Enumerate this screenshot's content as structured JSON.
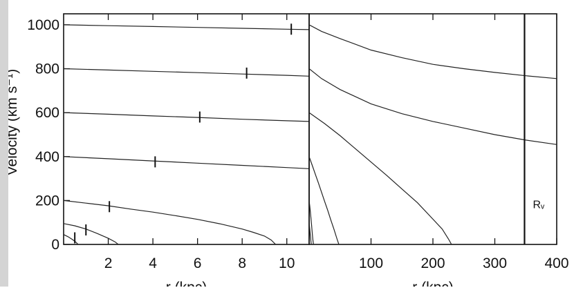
{
  "chart_data": [
    {
      "type": "line",
      "ylabel": "Velocity (km s⁻¹)",
      "xlabel": "r (kpc)",
      "xlim": [
        0,
        11
      ],
      "ylim": [
        0,
        1050
      ],
      "xticks": [
        2,
        4,
        6,
        8,
        10
      ],
      "yticks": [
        0,
        200,
        400,
        600,
        800,
        1000
      ],
      "series": [
        {
          "x": [
            0,
            2,
            4,
            6,
            8,
            10,
            11
          ],
          "y": [
            1000,
            996,
            992,
            988,
            984,
            980,
            978
          ]
        },
        {
          "x": [
            0,
            2,
            4,
            6,
            8,
            10,
            11
          ],
          "y": [
            800,
            794,
            788,
            782,
            776,
            770,
            766
          ]
        },
        {
          "x": [
            0,
            2,
            4,
            6,
            8,
            10,
            11
          ],
          "y": [
            600,
            593,
            585,
            578,
            570,
            563,
            560
          ]
        },
        {
          "x": [
            0,
            2,
            4,
            6,
            8,
            10,
            11
          ],
          "y": [
            400,
            390,
            380,
            370,
            360,
            350,
            345
          ]
        },
        {
          "x": [
            0,
            1,
            2,
            3,
            4,
            5,
            6,
            7,
            8,
            8.5,
            9,
            9.3,
            9.5
          ],
          "y": [
            200,
            188,
            176,
            161,
            147,
            131,
            114,
            94,
            70,
            55,
            38,
            20,
            0
          ]
        },
        {
          "x": [
            0,
            0.5,
            1,
            1.5,
            2,
            2.3,
            2.45
          ],
          "y": [
            95,
            85,
            70,
            50,
            28,
            12,
            0
          ]
        },
        {
          "x": [
            0,
            0.2,
            0.4,
            0.55,
            0.65
          ],
          "y": [
            45,
            35,
            22,
            10,
            0
          ]
        }
      ],
      "markers": [
        {
          "x": 10.2,
          "y": 980
        },
        {
          "x": 8.2,
          "y": 780
        },
        {
          "x": 6.1,
          "y": 580
        },
        {
          "x": 4.1,
          "y": 376
        },
        {
          "x": 2.05,
          "y": 172
        },
        {
          "x": 1.0,
          "y": 66
        },
        {
          "x": 0.5,
          "y": 30
        }
      ]
    },
    {
      "type": "line",
      "xlabel": "r (kpc)",
      "xlim": [
        0,
        400
      ],
      "ylim": [
        0,
        1050
      ],
      "xticks": [
        100,
        200,
        300,
        400
      ],
      "series": [
        {
          "x": [
            0,
            20,
            50,
            100,
            150,
            200,
            250,
            300,
            350,
            400
          ],
          "y": [
            1000,
            970,
            937,
            885,
            850,
            820,
            800,
            783,
            768,
            755
          ]
        },
        {
          "x": [
            0,
            20,
            50,
            100,
            150,
            200,
            250,
            300,
            350,
            400
          ],
          "y": [
            800,
            755,
            705,
            640,
            595,
            560,
            530,
            500,
            475,
            455
          ]
        },
        {
          "x": [
            0,
            25,
            50,
            75,
            100,
            125,
            150,
            175,
            200,
            215,
            225,
            230
          ],
          "y": [
            600,
            550,
            495,
            435,
            375,
            315,
            252,
            190,
            115,
            70,
            25,
            0
          ]
        },
        {
          "x": [
            0,
            5,
            10,
            15,
            20,
            25,
            30,
            35,
            40,
            45,
            48
          ],
          "y": [
            400,
            360,
            320,
            280,
            238,
            196,
            155,
            112,
            70,
            25,
            0
          ]
        },
        {
          "x": [
            0,
            1,
            2,
            3,
            4,
            5,
            6,
            7
          ],
          "y": [
            200,
            175,
            148,
            118,
            86,
            52,
            22,
            0
          ]
        },
        {
          "x": [
            0,
            1,
            2,
            3,
            3.5
          ],
          "y": [
            100,
            70,
            40,
            12,
            0
          ]
        }
      ],
      "vline": {
        "x": 348,
        "label": "Rᵥ"
      }
    }
  ]
}
